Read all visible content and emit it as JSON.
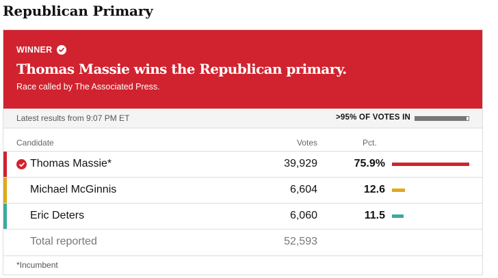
{
  "section_title": "Republican Primary",
  "banner": {
    "winner_label": "WINNER",
    "headline": "Thomas Massie wins the Republican primary.",
    "race_called": "Race called by The Associated Press.",
    "background_color": "#d0232f"
  },
  "status": {
    "latest": "Latest results from 9:07 PM ET",
    "votes_in": ">95% OF VOTES IN",
    "reporting_fraction": 0.96
  },
  "table": {
    "headers": {
      "candidate": "Candidate",
      "votes": "Votes",
      "pct": "Pct."
    },
    "rows": [
      {
        "name": "Thomas Massie*",
        "votes": "39,929",
        "pct": "75.9%",
        "pct_value": 75.9,
        "color": "#d0232f",
        "winner": true
      },
      {
        "name": "Michael McGinnis",
        "votes": "6,604",
        "pct": "12.6",
        "pct_value": 12.6,
        "color": "#e0a81a",
        "winner": false
      },
      {
        "name": "Eric Deters",
        "votes": "6,060",
        "pct": "11.5",
        "pct_value": 11.5,
        "color": "#3aaaa0",
        "winner": false
      }
    ],
    "total": {
      "label": "Total reported",
      "votes": "52,593"
    }
  },
  "footnote": "*Incumbent",
  "icons": {
    "winner": "check-circle-icon"
  }
}
